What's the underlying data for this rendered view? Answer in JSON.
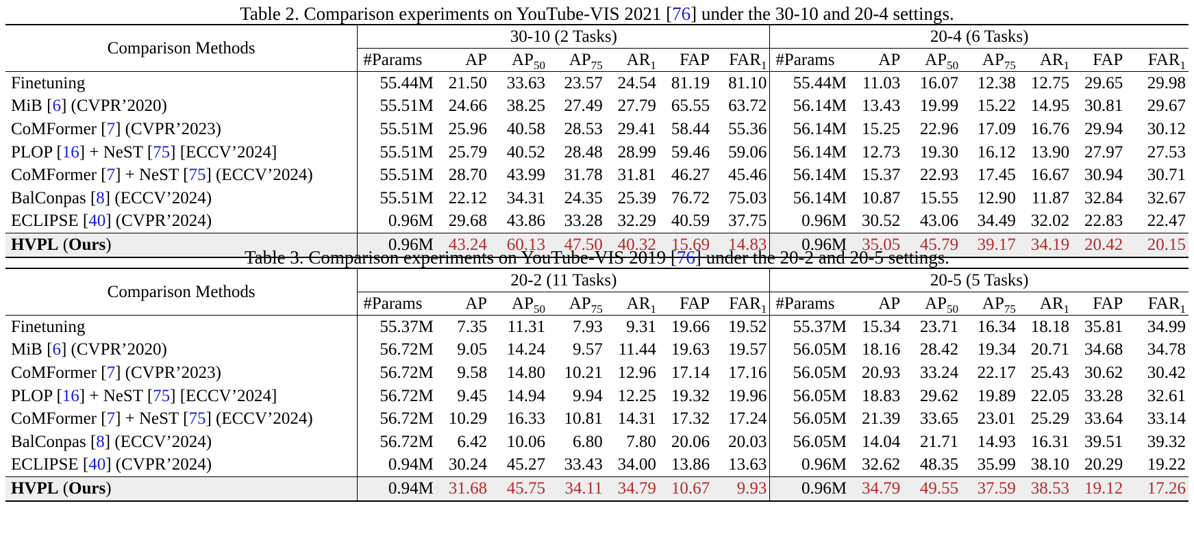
{
  "columns": [
    "#Params",
    "AP",
    "AP",
    "AP",
    "AR",
    "FAP",
    "FAR"
  ],
  "column_subscripts": [
    "",
    "",
    "50",
    "75",
    "1",
    "",
    "1"
  ],
  "method_header": "Comparison Methods",
  "table2": {
    "caption_pre": "Table 2. Comparison experiments on YouTube-VIS 2021 [",
    "caption_cite": "76",
    "caption_post": "] under the 30-10 and 20-4 settings.",
    "group_a": "30-10 (2 Tasks)",
    "group_b": "20-4 (6 Tasks)",
    "rows": [
      {
        "method": [
          {
            "t": "Finetuning"
          }
        ],
        "a": [
          "55.44M",
          "21.50",
          "33.63",
          "23.57",
          "24.54",
          "81.19",
          "81.10"
        ],
        "b": [
          "55.44M",
          "11.03",
          "16.07",
          "12.38",
          "12.75",
          "29.65",
          "29.98"
        ]
      },
      {
        "method": [
          {
            "t": "MiB ["
          },
          {
            "t": "6",
            "c": 1
          },
          {
            "t": "] (CVPR’2020)"
          }
        ],
        "a": [
          "55.51M",
          "24.66",
          "38.25",
          "27.49",
          "27.79",
          "65.55",
          "63.72"
        ],
        "b": [
          "56.14M",
          "13.43",
          "19.99",
          "15.22",
          "14.95",
          "30.81",
          "29.67"
        ]
      },
      {
        "method": [
          {
            "t": "CoMFormer ["
          },
          {
            "t": "7",
            "c": 1
          },
          {
            "t": "] (CVPR’2023)"
          }
        ],
        "a": [
          "55.51M",
          "25.96",
          "40.58",
          "28.53",
          "29.41",
          "58.44",
          "55.36"
        ],
        "b": [
          "56.14M",
          "15.25",
          "22.96",
          "17.09",
          "16.76",
          "29.94",
          "30.12"
        ]
      },
      {
        "method": [
          {
            "t": "PLOP ["
          },
          {
            "t": "16",
            "c": 1
          },
          {
            "t": "] + NeST ["
          },
          {
            "t": "75",
            "c": 1
          },
          {
            "t": "]    [ECCV’2024]"
          }
        ],
        "a": [
          "55.51M",
          "25.79",
          "40.52",
          "28.48",
          "28.99",
          "59.46",
          "59.06"
        ],
        "b": [
          "56.14M",
          "12.73",
          "19.30",
          "16.12",
          "13.90",
          "27.97",
          "27.53"
        ]
      },
      {
        "method": [
          {
            "t": "CoMFormer ["
          },
          {
            "t": "7",
            "c": 1
          },
          {
            "t": "] + NeST ["
          },
          {
            "t": "75",
            "c": 1
          },
          {
            "t": "] (ECCV’2024)"
          }
        ],
        "a": [
          "55.51M",
          "28.70",
          "43.99",
          "31.78",
          "31.81",
          "46.27",
          "45.46"
        ],
        "b": [
          "56.14M",
          "15.37",
          "22.93",
          "17.45",
          "16.67",
          "30.94",
          "30.71"
        ]
      },
      {
        "method": [
          {
            "t": "BalConpas ["
          },
          {
            "t": "8",
            "c": 1
          },
          {
            "t": "] (ECCV’2024)"
          }
        ],
        "a": [
          "55.51M",
          "22.12",
          "34.31",
          "24.35",
          "25.39",
          "76.72",
          "75.03"
        ],
        "b": [
          "56.14M",
          "10.87",
          "15.55",
          "12.90",
          "11.87",
          "32.84",
          "32.67"
        ]
      },
      {
        "method": [
          {
            "t": "ECLIPSE ["
          },
          {
            "t": "40",
            "c": 1
          },
          {
            "t": "] (CVPR’2024)"
          }
        ],
        "a": [
          "0.96M",
          "29.68",
          "43.86",
          "33.28",
          "32.29",
          "40.59",
          "37.75"
        ],
        "b": [
          "0.96M",
          "30.52",
          "43.06",
          "34.49",
          "32.02",
          "22.83",
          "22.47"
        ]
      }
    ],
    "ours": {
      "name": "HVPL",
      "paren_open": " (",
      "tag": "Ours",
      "paren_close": ")",
      "a": [
        "0.96M",
        "43.24",
        "60.13",
        "47.50",
        "40.32",
        "15.69",
        "14.83"
      ],
      "b": [
        "0.96M",
        "35.05",
        "45.79",
        "39.17",
        "34.19",
        "20.42",
        "20.15"
      ]
    }
  },
  "table3": {
    "caption_pre": "Table 3. Comparison experiments on YouTube-VIS 2019 [",
    "caption_cite": "76",
    "caption_post": "] under the 20-2 and 20-5 settings.",
    "group_a": "20-2 (11 Tasks)",
    "group_b": "20-5 (5 Tasks)",
    "rows": [
      {
        "method": [
          {
            "t": "Finetuning"
          }
        ],
        "a": [
          "55.37M",
          "7.35",
          "11.31",
          "7.93",
          "9.31",
          "19.66",
          "19.52"
        ],
        "b": [
          "55.37M",
          "15.34",
          "23.71",
          "16.34",
          "18.18",
          "35.81",
          "34.99"
        ]
      },
      {
        "method": [
          {
            "t": "MiB ["
          },
          {
            "t": "6",
            "c": 1
          },
          {
            "t": "] (CVPR’2020)"
          }
        ],
        "a": [
          "56.72M",
          "9.05",
          "14.24",
          "9.57",
          "11.44",
          "19.63",
          "19.57"
        ],
        "b": [
          "56.05M",
          "18.16",
          "28.42",
          "19.34",
          "20.71",
          "34.68",
          "34.78"
        ]
      },
      {
        "method": [
          {
            "t": "CoMFormer ["
          },
          {
            "t": "7",
            "c": 1
          },
          {
            "t": "] (CVPR’2023)"
          }
        ],
        "a": [
          "56.72M",
          "9.58",
          "14.80",
          "10.21",
          "12.96",
          "17.14",
          "17.16"
        ],
        "b": [
          "56.05M",
          "20.93",
          "33.24",
          "22.17",
          "25.43",
          "30.62",
          "30.42"
        ]
      },
      {
        "method": [
          {
            "t": "PLOP ["
          },
          {
            "t": "16",
            "c": 1
          },
          {
            "t": "] + NeST ["
          },
          {
            "t": "75",
            "c": 1
          },
          {
            "t": "]    [ECCV’2024]"
          }
        ],
        "a": [
          "56.72M",
          "9.45",
          "14.94",
          "9.94",
          "12.25",
          "19.32",
          "19.96"
        ],
        "b": [
          "56.05M",
          "18.83",
          "29.62",
          "19.89",
          "22.05",
          "33.28",
          "32.61"
        ]
      },
      {
        "method": [
          {
            "t": "CoMFormer ["
          },
          {
            "t": "7",
            "c": 1
          },
          {
            "t": "] + NeST ["
          },
          {
            "t": "75",
            "c": 1
          },
          {
            "t": "] (ECCV’2024)"
          }
        ],
        "a": [
          "56.72M",
          "10.29",
          "16.33",
          "10.81",
          "14.31",
          "17.32",
          "17.24"
        ],
        "b": [
          "56.05M",
          "21.39",
          "33.65",
          "23.01",
          "25.29",
          "33.64",
          "33.14"
        ]
      },
      {
        "method": [
          {
            "t": "BalConpas ["
          },
          {
            "t": "8",
            "c": 1
          },
          {
            "t": "] (ECCV’2024)"
          }
        ],
        "a": [
          "56.72M",
          "6.42",
          "10.06",
          "6.80",
          "7.80",
          "20.06",
          "20.03"
        ],
        "b": [
          "56.05M",
          "14.04",
          "21.71",
          "14.93",
          "16.31",
          "39.51",
          "39.32"
        ]
      },
      {
        "method": [
          {
            "t": "ECLIPSE ["
          },
          {
            "t": "40",
            "c": 1
          },
          {
            "t": "] (CVPR’2024)"
          }
        ],
        "a": [
          "0.94M",
          "30.24",
          "45.27",
          "33.43",
          "34.00",
          "13.86",
          "13.63"
        ],
        "b": [
          "0.96M",
          "32.62",
          "48.35",
          "35.99",
          "38.10",
          "20.29",
          "19.22"
        ]
      }
    ],
    "ours": {
      "name": "HVPL",
      "paren_open": " (",
      "tag": "Ours",
      "paren_close": ")",
      "a": [
        "0.94M",
        "31.68",
        "45.75",
        "34.11",
        "34.79",
        "10.67",
        "9.93"
      ],
      "b": [
        "0.96M",
        "34.79",
        "49.55",
        "37.59",
        "38.53",
        "19.12",
        "17.26"
      ]
    }
  },
  "colors": {
    "best": "#b52a2a",
    "citation": "#1a1adb",
    "ours_row_bg": "#eeeeee"
  }
}
